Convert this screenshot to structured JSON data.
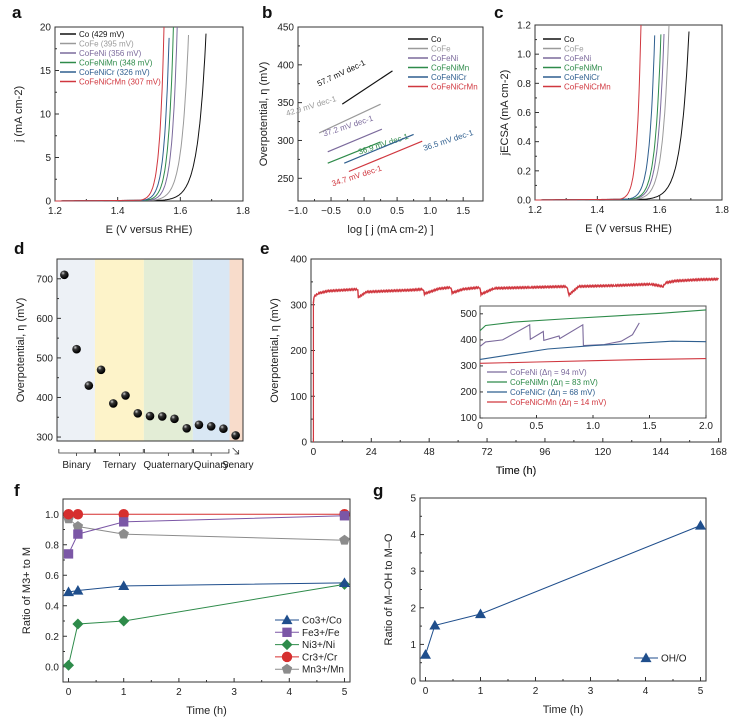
{
  "colors": {
    "Co": "#111111",
    "CoFe": "#9a9a9a",
    "CoFeNi": "#7b6a9c",
    "CoFeNiMn": "#2e8b4a",
    "CoFeNiCr": "#2f5f8f",
    "CoFeNiCrMn": "#d0373f"
  },
  "chart_data": [
    {
      "panel": "a",
      "type": "line",
      "xlabel": "E (V versus RHE)",
      "ylabel": "j (mA cm-2)",
      "xlim": [
        1.2,
        1.8
      ],
      "ylim": [
        0,
        20
      ],
      "xticks": [
        "1.2",
        "1.4",
        "1.6",
        "1.8"
      ],
      "yticks": [
        "0",
        "5",
        "10",
        "15",
        "20"
      ],
      "legend_position": "top-left",
      "series": [
        {
          "name": "Co",
          "label": "Co (429 mV)",
          "color_key": "Co",
          "onset": 1.54,
          "e_at_top": 1.683
        },
        {
          "name": "CoFe",
          "label": "CoFe (395 mV)",
          "color_key": "CoFe",
          "onset": 1.51,
          "e_at_top": 1.627
        },
        {
          "name": "CoFeNi",
          "label": "CoFeNi (356 mV)",
          "color_key": "CoFeNi",
          "onset": 1.5,
          "e_at_top": 1.59
        },
        {
          "name": "CoFeNiMn",
          "label": "CoFeNiMn (348 mV)",
          "color_key": "CoFeNiMn",
          "onset": 1.49,
          "e_at_top": 1.578
        },
        {
          "name": "CoFeNiCr",
          "label": "CoFeNiCr (326 mV)",
          "color_key": "CoFeNiCr",
          "onset": 1.48,
          "e_at_top": 1.565
        },
        {
          "name": "CoFeNiCrMn",
          "label": "CoFeNiCrMn (307 mV)",
          "color_key": "CoFeNiCrMn",
          "onset": 1.47,
          "e_at_top": 1.548
        }
      ]
    },
    {
      "panel": "b",
      "type": "line",
      "xlabel": "log [ j (mA cm-2) ]",
      "ylabel": "Overpotential, η (mV)",
      "xlim": [
        -1.0,
        1.8
      ],
      "ylim": [
        220,
        450
      ],
      "xticks": [
        "-1.0",
        "-0.5",
        "0.0",
        "0.5",
        "1.0",
        "1.5"
      ],
      "yticks": [
        "250",
        "300",
        "350",
        "400",
        "450"
      ],
      "legend_position": "top-right",
      "series": [
        {
          "name": "Co",
          "color_key": "Co",
          "x": [
            -0.33,
            0.43
          ],
          "y": [
            348,
            392
          ],
          "slope_label": "57.7 mV dec-1"
        },
        {
          "name": "CoFe",
          "color_key": "CoFe",
          "x": [
            -0.68,
            0.25
          ],
          "y": [
            310,
            348
          ],
          "slope_label": "42.9 mV dec-1"
        },
        {
          "name": "CoFeNi",
          "color_key": "CoFeNi",
          "x": [
            -0.55,
            0.27
          ],
          "y": [
            285,
            315
          ],
          "slope_label": "37.2 mV dec-1"
        },
        {
          "name": "CoFeNiMn",
          "color_key": "CoFeNiMn",
          "x": [
            -0.55,
            0.25
          ],
          "y": [
            270,
            298
          ],
          "slope_label": "36.9 mV dec-1"
        },
        {
          "name": "CoFeNiCr",
          "color_key": "CoFeNiCr",
          "x": [
            -0.3,
            0.75
          ],
          "y": [
            270,
            308
          ],
          "slope_label": "36.5 mV dec-1"
        },
        {
          "name": "CoFeNiCrMn",
          "color_key": "CoFeNiCrMn",
          "x": [
            -0.23,
            0.88
          ],
          "y": [
            259,
            299
          ],
          "slope_label": "34.7 mV dec-1"
        }
      ]
    },
    {
      "panel": "c",
      "type": "line",
      "xlabel": "E (V versus RHE)",
      "ylabel": "jECSA (mA cm-2)",
      "xlim": [
        1.2,
        1.8
      ],
      "ylim": [
        0,
        1.2
      ],
      "xticks": [
        "1.2",
        "1.4",
        "1.6",
        "1.8"
      ],
      "yticks": [
        "0.0",
        "0.2",
        "0.4",
        "0.6",
        "0.8",
        "1.0",
        "1.2"
      ],
      "legend_position": "top-left",
      "series": [
        {
          "name": "Co",
          "color_key": "Co",
          "onset": 1.55,
          "e_at_top": 1.695
        },
        {
          "name": "CoFe",
          "color_key": "CoFe",
          "onset": 1.52,
          "e_at_top": 1.63
        },
        {
          "name": "CoFeNi",
          "color_key": "CoFeNi",
          "onset": 1.51,
          "e_at_top": 1.615
        },
        {
          "name": "CoFeNiMn",
          "color_key": "CoFeNiMn",
          "onset": 1.505,
          "e_at_top": 1.605
        },
        {
          "name": "CoFeNiCr",
          "color_key": "CoFeNiCr",
          "onset": 1.495,
          "e_at_top": 1.585
        },
        {
          "name": "CoFeNiCrMn",
          "color_key": "CoFeNiCrMn",
          "onset": 1.47,
          "e_at_top": 1.54
        }
      ]
    },
    {
      "panel": "d",
      "type": "scatter",
      "xlabel": "",
      "ylabel": "Overpotential, η (mV)",
      "ylim": [
        290,
        750
      ],
      "yticks": [
        "300",
        "400",
        "500",
        "600",
        "700"
      ],
      "groups": [
        {
          "label": "Binary",
          "count": 3,
          "color": "#edf1f6"
        },
        {
          "label": "Ternary",
          "count": 4,
          "color": "#fdf3c9"
        },
        {
          "label": "Quaternary",
          "count": 4,
          "color": "#e3edd6"
        },
        {
          "label": "Quinary",
          "count": 3,
          "color": "#d9e7f4"
        },
        {
          "label": "Senary",
          "count": 1,
          "color": "#f8dccb"
        }
      ],
      "values": [
        710,
        522,
        430,
        470,
        385,
        405,
        360,
        353,
        352,
        346,
        322,
        331,
        327,
        321,
        304
      ]
    },
    {
      "panel": "e",
      "type": "line",
      "xlabel": "Time (h)",
      "ylabel": "Overpotential, η (mV)",
      "xlim": [
        -1,
        169
      ],
      "ylim": [
        0,
        400
      ],
      "xticks": [
        "0",
        "24",
        "48",
        "72",
        "96",
        "120",
        "144",
        "168"
      ],
      "yticks": [
        "0",
        "100",
        "200",
        "300",
        "400"
      ],
      "main_series": {
        "name": "CoFeNiCrMn",
        "color_key": "CoFeNiCrMn",
        "x": [
          0,
          0.3,
          2,
          6,
          12,
          18.4,
          18.6,
          22,
          30,
          40,
          45.5,
          46,
          52,
          57,
          57.5,
          62,
          69,
          69.5,
          75,
          90,
          105,
          106,
          110,
          125,
          140,
          145,
          146,
          150,
          160,
          168
        ],
        "y": [
          305,
          318,
          325,
          330,
          332,
          334,
          316,
          328,
          330,
          332,
          334,
          324,
          335,
          338,
          326,
          334,
          338,
          323,
          336,
          338,
          340,
          322,
          340,
          342,
          345,
          340,
          348,
          352,
          355,
          356
        ]
      },
      "inset": {
        "xlim": [
          0,
          2.0
        ],
        "ylim": [
          100,
          530
        ],
        "xticks": [
          "0",
          "0.5",
          "1.0",
          "1.5",
          "2.0"
        ],
        "yticks": [
          "100",
          "200",
          "300",
          "400",
          "500"
        ],
        "series": [
          {
            "name": "CoFeNi",
            "label": "CoFeNi (Δη = 94 mV)",
            "color_key": "CoFeNi",
            "x": [
              0,
              0.05,
              0.2,
              0.44,
              0.445,
              0.56,
              0.565,
              0.7,
              0.705,
              0.91,
              0.915,
              1.1,
              1.25,
              1.35,
              1.41
            ],
            "y": [
              375,
              392,
              400,
              458,
              402,
              432,
              398,
              415,
              405,
              458,
              378,
              382,
              395,
              420,
              465
            ]
          },
          {
            "name": "CoFeNiMn",
            "label": "CoFeNiMn (Δη = 83 mV)",
            "color_key": "CoFeNiMn",
            "x": [
              0,
              0.05,
              0.3,
              0.8,
              1.2,
              1.6,
              2.0
            ],
            "y": [
              435,
              455,
              468,
              482,
              492,
              502,
              515
            ]
          },
          {
            "name": "CoFeNiCr",
            "label": "CoFeNiCr (Δη = 68 mV)",
            "color_key": "CoFeNiCr",
            "x": [
              0,
              0.3,
              0.6,
              1.0,
              1.3,
              1.7,
              2.0
            ],
            "y": [
              325,
              345,
              365,
              378,
              385,
              395,
              393
            ]
          },
          {
            "name": "CoFeNiCrMn",
            "label": "CoFeNiCrMn (Δη = 14 mV)",
            "color_key": "CoFeNiCrMn",
            "x": [
              0,
              0.5,
              1.0,
              1.5,
              2.0
            ],
            "y": [
              310,
              315,
              320,
              325,
              328
            ]
          }
        ]
      }
    },
    {
      "panel": "f",
      "type": "line",
      "xlabel": "Time (h)",
      "ylabel": "Ratio of M3+ to M",
      "xlim": [
        -0.1,
        5.1
      ],
      "ylim": [
        -0.1,
        1.1
      ],
      "xticks": [
        "0",
        "1",
        "2",
        "3",
        "4",
        "5"
      ],
      "yticks": [
        "0.0",
        "0.2",
        "0.4",
        "0.6",
        "0.8",
        "1.0"
      ],
      "legend_position": "bottom-right",
      "x": [
        0,
        0.17,
        1,
        5
      ],
      "series": [
        {
          "name": "Co3+/Co",
          "marker": "triangle",
          "color": "#1f4e8c",
          "values": [
            0.49,
            0.5,
            0.53,
            0.55
          ]
        },
        {
          "name": "Fe3+/Fe",
          "marker": "square",
          "color": "#7b57a6",
          "values": [
            0.74,
            0.87,
            0.95,
            0.99
          ]
        },
        {
          "name": "Ni3+/Ni",
          "marker": "diamond",
          "color": "#2e8b4a",
          "values": [
            0.01,
            0.28,
            0.3,
            0.54
          ]
        },
        {
          "name": "Cr3+/Cr",
          "marker": "circle",
          "color": "#d62f2f",
          "values": [
            1.0,
            1.0,
            1.0,
            1.0
          ]
        },
        {
          "name": "Mn3+/Mn",
          "marker": "pentagon",
          "color": "#8c8c8c",
          "values": [
            0.97,
            0.92,
            0.87,
            0.83
          ]
        }
      ]
    },
    {
      "panel": "g",
      "type": "line",
      "xlabel": "Time (h)",
      "ylabel": "Ratio of M–OH to M–O",
      "xlim": [
        -0.1,
        5.1
      ],
      "ylim": [
        0,
        5
      ],
      "xticks": [
        "0",
        "1",
        "2",
        "3",
        "4",
        "5"
      ],
      "yticks": [
        "0",
        "1",
        "2",
        "3",
        "4",
        "5"
      ],
      "legend_position": "bottom-right",
      "x": [
        0,
        0.17,
        1,
        5
      ],
      "series": [
        {
          "name": "OH/O",
          "marker": "triangle",
          "color": "#1f4e8c",
          "values": [
            0.72,
            1.52,
            1.83,
            4.25
          ]
        }
      ]
    }
  ],
  "panel_letters": [
    "a",
    "b",
    "c",
    "d",
    "e",
    "f",
    "g"
  ]
}
